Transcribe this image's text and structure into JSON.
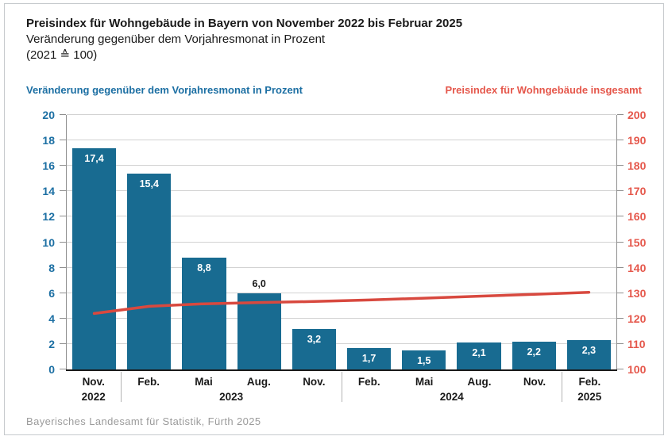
{
  "header": {
    "title": "Preisindex für Wohngebäude in Bayern von November 2022 bis Februar 2025",
    "subtitle": "Veränderung gegenüber dem Vorjahresmonat in Prozent",
    "subtitle2": "(2021 ≙ 100)"
  },
  "axis_headers": {
    "left": "Veränderung gegenüber dem Vorjahresmonat in Prozent",
    "right": "Preisindex für Wohngebäude insgesamt"
  },
  "footer": "Bayerisches Landesamt für Statistik, Fürth 2025",
  "colors": {
    "bar": "#186b91",
    "line": "#d8493f",
    "left_axis_text": "#1c6fa3",
    "right_axis_text": "#e5574b",
    "bar_label_inside": "#ffffff",
    "bar_label_above": "#1a1a1a",
    "grid": "#d2d2d2",
    "axis_frame": "#8f8f8f",
    "baseline": "#1a1a1a",
    "footer_text": "#9b9b9b",
    "frame_border": "#c6cacd"
  },
  "chart_data": {
    "type": "bar+line",
    "categories": [
      "Nov.",
      "Feb.",
      "Mai",
      "Aug.",
      "Nov.",
      "Feb.",
      "Mai",
      "Aug.",
      "Nov.",
      "Feb."
    ],
    "year_groups": [
      {
        "label": "2022",
        "span": 1
      },
      {
        "label": "2023",
        "span": 4
      },
      {
        "label": "2024",
        "span": 4
      },
      {
        "label": "2025",
        "span": 1
      }
    ],
    "series": [
      {
        "name": "Veränderung gegenüber dem Vorjahresmonat in Prozent",
        "type": "bar",
        "axis": "left",
        "values": [
          17.4,
          15.4,
          8.8,
          6.0,
          3.2,
          1.7,
          1.5,
          2.1,
          2.2,
          2.3
        ],
        "labels": [
          "17,4",
          "15,4",
          "8,8",
          "6,0",
          "3,2",
          "1,7",
          "1,5",
          "2,1",
          "2,2",
          "2,3"
        ],
        "label_above": [
          false,
          false,
          false,
          true,
          false,
          false,
          false,
          false,
          false,
          false
        ]
      },
      {
        "name": "Preisindex für Wohngebäude insgesamt",
        "type": "line",
        "axis": "right",
        "values": [
          122.0,
          124.8,
          125.8,
          126.3,
          126.7,
          127.3,
          128.0,
          128.8,
          129.5,
          130.3
        ]
      }
    ],
    "left_axis": {
      "min": 0,
      "max": 20,
      "step": 2,
      "tick_labels": [
        "0",
        "2",
        "4",
        "6",
        "8",
        "10",
        "12",
        "14",
        "16",
        "18",
        "20"
      ]
    },
    "right_axis": {
      "min": 100,
      "max": 200,
      "step": 10,
      "tick_labels": [
        "100",
        "110",
        "120",
        "130",
        "140",
        "150",
        "160",
        "170",
        "180",
        "190",
        "200"
      ]
    },
    "grid": true,
    "legend_position": "top-as-axis-headers"
  }
}
